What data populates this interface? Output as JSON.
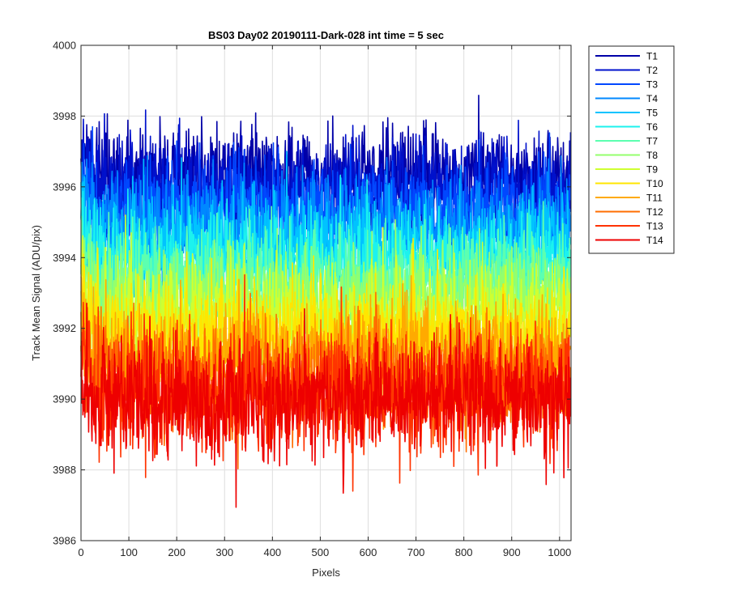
{
  "chart_data": {
    "type": "line",
    "title": "BS03 Day02 20190111-Dark-028 int time = 5 sec",
    "xlabel": "Pixels",
    "ylabel": "Track Mean Signal (ADU/pix)",
    "xlim": [
      0,
      1024
    ],
    "ylim": [
      3986,
      4000
    ],
    "xticks": [
      0,
      100,
      200,
      300,
      400,
      500,
      600,
      700,
      800,
      900,
      1000
    ],
    "yticks": [
      3986,
      3988,
      3990,
      3992,
      3994,
      3996,
      3998,
      4000
    ],
    "grid": true,
    "legend_position": "outside-top-right",
    "n_points": 1024,
    "series": [
      {
        "name": "T1",
        "color": "#0000a8",
        "mean": 3996.3,
        "noise": 0.7,
        "min": 3992.8,
        "max": 3999.1
      },
      {
        "name": "T2",
        "color": "#0011cc",
        "mean": 3995.9,
        "noise": 0.7,
        "min": 3992.3,
        "max": 3998.4
      },
      {
        "name": "T3",
        "color": "#0047ff",
        "mean": 3995.4,
        "noise": 0.7,
        "min": 3991.8,
        "max": 3998.0
      },
      {
        "name": "T4",
        "color": "#0088ff",
        "mean": 3994.9,
        "noise": 0.7,
        "min": 3991.3,
        "max": 3997.5
      },
      {
        "name": "T5",
        "color": "#00c3ff",
        "mean": 3994.4,
        "noise": 0.7,
        "min": 3990.8,
        "max": 3997.0
      },
      {
        "name": "T6",
        "color": "#1cf2ee",
        "mean": 3993.9,
        "noise": 0.7,
        "min": 3990.3,
        "max": 3996.6
      },
      {
        "name": "T7",
        "color": "#5cffb0",
        "mean": 3993.4,
        "noise": 0.7,
        "min": 3989.8,
        "max": 3996.1
      },
      {
        "name": "T8",
        "color": "#94ff6c",
        "mean": 3992.9,
        "noise": 0.7,
        "min": 3989.3,
        "max": 3995.6
      },
      {
        "name": "T9",
        "color": "#cfff30",
        "mean": 3992.3,
        "noise": 0.75,
        "min": 3988.0,
        "max": 3995.2
      },
      {
        "name": "T10",
        "color": "#ffe600",
        "mean": 3991.8,
        "noise": 0.75,
        "min": 3988.2,
        "max": 3994.8
      },
      {
        "name": "T11",
        "color": "#ffaa00",
        "mean": 3991.2,
        "noise": 0.75,
        "min": 3987.6,
        "max": 3994.4
      },
      {
        "name": "T12",
        "color": "#ff6e00",
        "mean": 3990.6,
        "noise": 0.8,
        "min": 3987.2,
        "max": 3994.0
      },
      {
        "name": "T13",
        "color": "#ff3300",
        "mean": 3990.2,
        "noise": 0.85,
        "min": 3986.9,
        "max": 3993.8
      },
      {
        "name": "T14",
        "color": "#ee0000",
        "mean": 3990.0,
        "noise": 0.85,
        "min": 3986.5,
        "max": 3993.9
      }
    ]
  }
}
